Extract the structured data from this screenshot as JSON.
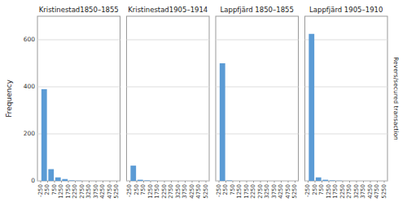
{
  "chart_data": [
    {
      "type": "histogram",
      "title": "Kristinestad1850–1855",
      "bins": [
        -250,
        250,
        750,
        1250,
        1750,
        2250,
        2750,
        3250,
        3750,
        4250,
        4750,
        5250
      ],
      "values": [
        390,
        50,
        15,
        8,
        2,
        1,
        0,
        0,
        0,
        0,
        0
      ],
      "color": "#5B9BD5",
      "ylabel": "Frequency",
      "ylim": [
        0,
        700
      ],
      "yticks": [
        0,
        200,
        400,
        600
      ],
      "grid": true
    },
    {
      "type": "histogram",
      "title": "Kristinestad1905–1914",
      "bins": [
        -250,
        250,
        750,
        1250,
        1750,
        2250,
        2750,
        3250,
        3750,
        4250,
        4750,
        5250
      ],
      "values": [
        65,
        5,
        2,
        1,
        0,
        0,
        0,
        0,
        0,
        0,
        0
      ],
      "color": "#5B9BD5",
      "ylim": [
        0,
        700
      ],
      "yticks": [
        0,
        200,
        400,
        600
      ],
      "grid": true,
      "tick_labels": "x"
    },
    {
      "type": "histogram",
      "title": "Lappfjärd 1850–1855",
      "bins": [
        -250,
        250,
        750,
        1250,
        1750,
        2250,
        2750,
        3250,
        3750,
        4250,
        4750,
        5250
      ],
      "values": [
        500,
        2,
        0,
        0,
        0,
        0,
        0,
        0,
        0,
        0,
        0
      ],
      "color": "#5B9BD5",
      "ylim": [
        0,
        700
      ],
      "yticks": [
        0,
        200,
        400,
        600
      ],
      "grid": true,
      "tick_labels": "x"
    },
    {
      "type": "histogram",
      "title": "Lappfjärd 1905–1910",
      "bins": [
        -250,
        250,
        750,
        1250,
        1750,
        2250,
        2750,
        3250,
        3750,
        4250,
        4750,
        5250
      ],
      "values": [
        625,
        15,
        5,
        2,
        1,
        0,
        0,
        0,
        0,
        0,
        0
      ],
      "color": "#5B9BD5",
      "ylim": [
        0,
        700
      ],
      "yticks": [
        0,
        200,
        400,
        600
      ],
      "grid": true,
      "tick_labels": "x",
      "annotations": [
        "Revers/secured transaction"
      ]
    }
  ]
}
